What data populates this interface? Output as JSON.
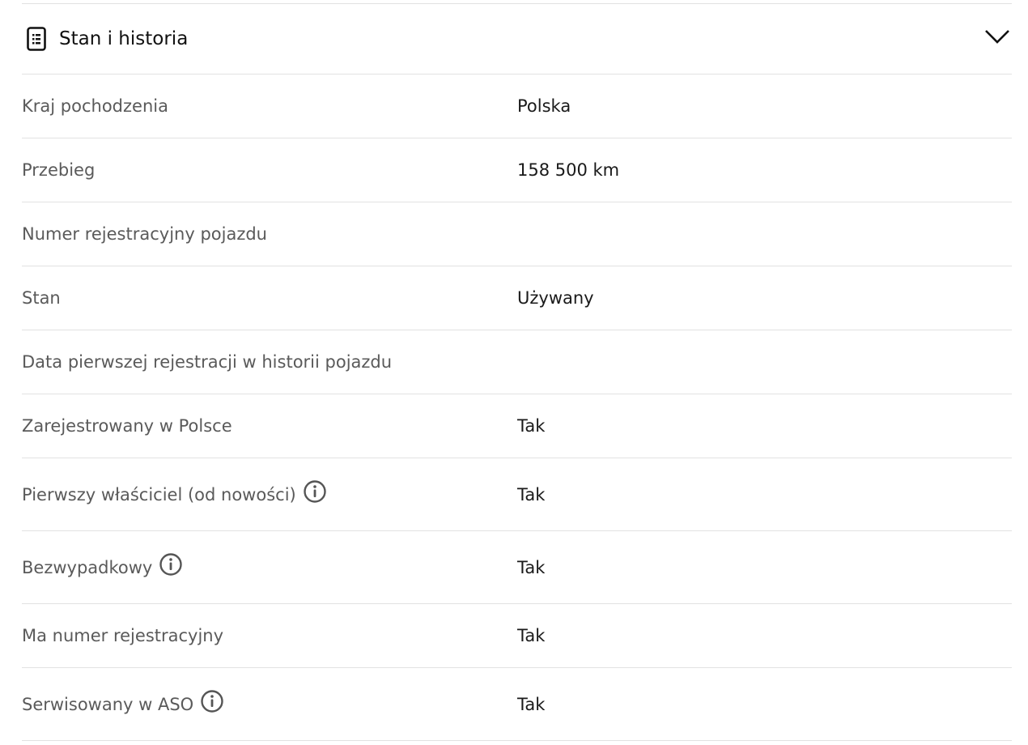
{
  "section": {
    "title": "Stan i historia",
    "icon": "document-list-icon",
    "toggle_icon": "chevron-down-icon"
  },
  "rows": [
    {
      "label": "Kraj pochodzenia",
      "value": "Polska",
      "info": false
    },
    {
      "label": "Przebieg",
      "value": "158 500 km",
      "info": false
    },
    {
      "label": "Numer rejestracyjny pojazdu",
      "value": "",
      "info": false
    },
    {
      "label": "Stan",
      "value": "Używany",
      "info": false
    },
    {
      "label": "Data pierwszej rejestracji w historii pojazdu",
      "value": "",
      "info": false
    },
    {
      "label": "Zarejestrowany w Polsce",
      "value": "Tak",
      "info": false
    },
    {
      "label": "Pierwszy właściciel (od nowości)",
      "value": "Tak",
      "info": true
    },
    {
      "label": "Bezwypadkowy",
      "value": "Tak",
      "info": true
    },
    {
      "label": "Ma numer rejestracyjny",
      "value": "Tak",
      "info": false
    },
    {
      "label": "Serwisowany w ASO",
      "value": "Tak",
      "info": true
    }
  ]
}
